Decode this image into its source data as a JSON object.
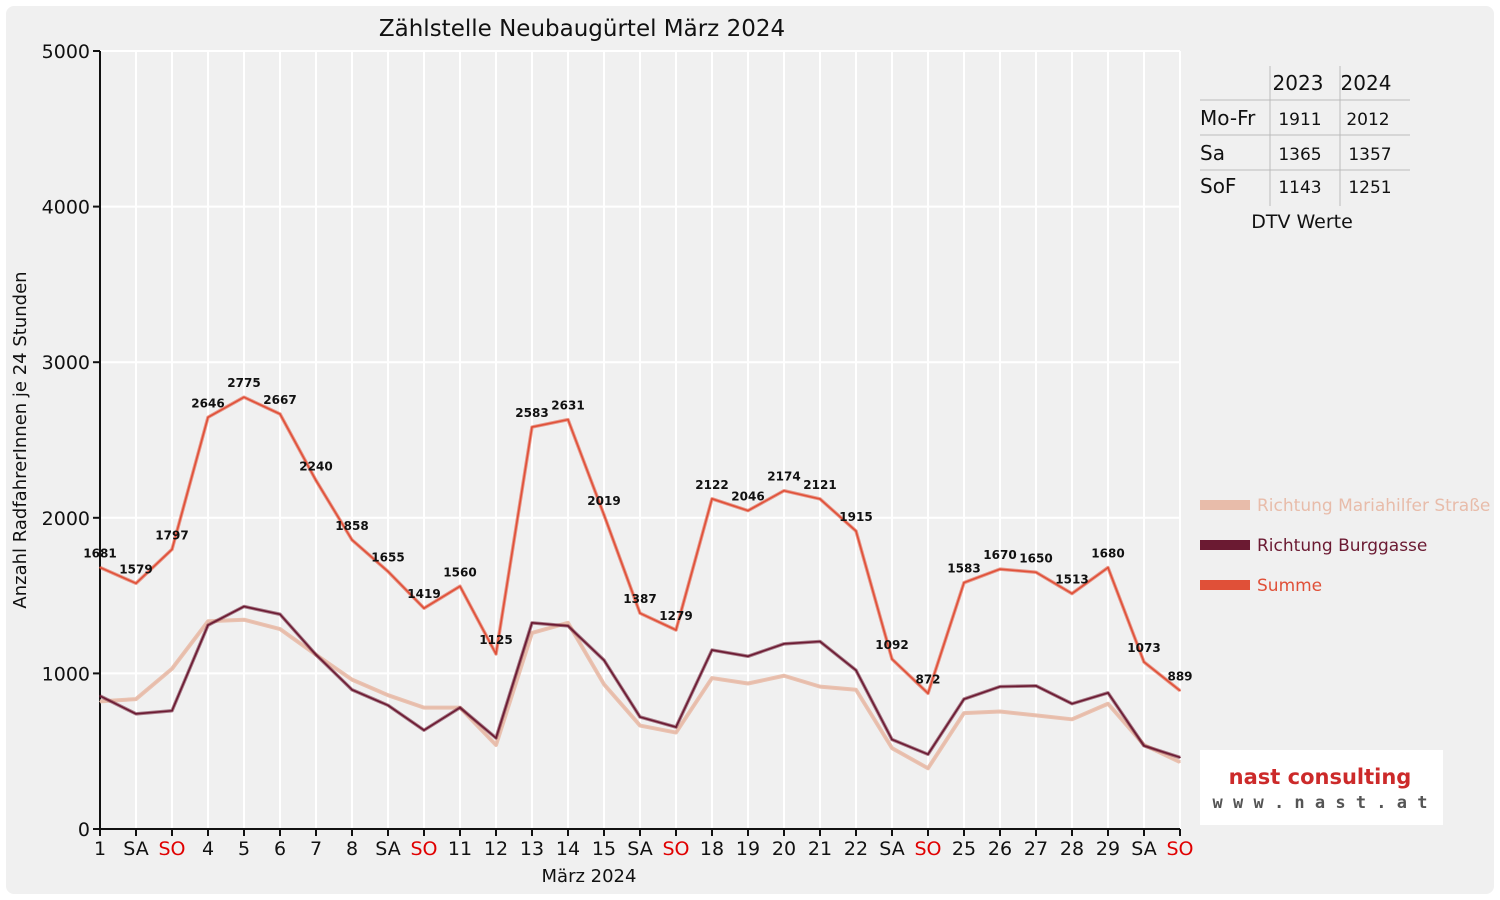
{
  "chart_data": {
    "type": "line",
    "title": "Zählstelle Neubaugürtel März 2024",
    "xlabel": "März 2024",
    "ylabel": "Anzahl RadfahrerInnen je 24 Stunden",
    "ylim": [
      0,
      5000
    ],
    "yticks": [
      "0",
      "1000",
      "2000",
      "3000",
      "4000",
      "5000"
    ],
    "categories": [
      "1",
      "SA",
      "SO",
      "4",
      "5",
      "6",
      "7",
      "8",
      "SA",
      "SO",
      "11",
      "12",
      "13",
      "14",
      "15",
      "SA",
      "SO",
      "18",
      "19",
      "20",
      "21",
      "22",
      "SA",
      "SO",
      "25",
      "26",
      "27",
      "28",
      "29",
      "SA",
      "SO"
    ],
    "weekend_categories": [
      "SO"
    ],
    "grid": true,
    "legend_position": "right",
    "series": [
      {
        "name": "Richtung Mariahilfer Straße",
        "color": "#e8bcaa",
        "values": [
          820,
          835,
          1030,
          1335,
          1345,
          1285,
          1120,
          960,
          860,
          780,
          780,
          540,
          1260,
          1325,
          930,
          665,
          620,
          970,
          935,
          985,
          915,
          895,
          520,
          390,
          745,
          755,
          730,
          705,
          805,
          540,
          430
        ]
      },
      {
        "name": "Richtung Burggasse",
        "color": "#6b1a32",
        "values": [
          855,
          740,
          760,
          1310,
          1430,
          1380,
          1120,
          895,
          795,
          635,
          780,
          585,
          1325,
          1305,
          1085,
          720,
          655,
          1150,
          1110,
          1190,
          1205,
          1020,
          575,
          480,
          835,
          915,
          920,
          805,
          875,
          535,
          460
        ]
      },
      {
        "name": "Summe",
        "color": "#e05038",
        "values": [
          1681,
          1579,
          1797,
          2646,
          2775,
          2667,
          2240,
          1858,
          1655,
          1419,
          1560,
          1125,
          2583,
          2631,
          2019,
          1387,
          1279,
          2122,
          2046,
          2174,
          2121,
          1915,
          1092,
          872,
          1583,
          1670,
          1650,
          1513,
          1680,
          1073,
          889
        ],
        "show_labels": true
      }
    ],
    "dtv_table": {
      "caption": "DTV Werte",
      "columns": [
        "2023",
        "2024"
      ],
      "rows": [
        {
          "label": "Mo-Fr",
          "values": [
            "1911",
            "2012"
          ]
        },
        {
          "label": "Sa",
          "values": [
            "1365",
            "1357"
          ]
        },
        {
          "label": "SoF",
          "values": [
            "1143",
            "1251"
          ]
        }
      ]
    }
  },
  "logo": {
    "name": "nast consulting",
    "url_text": "w w w . n a s t . a t",
    "color": "#cc2a2a"
  }
}
